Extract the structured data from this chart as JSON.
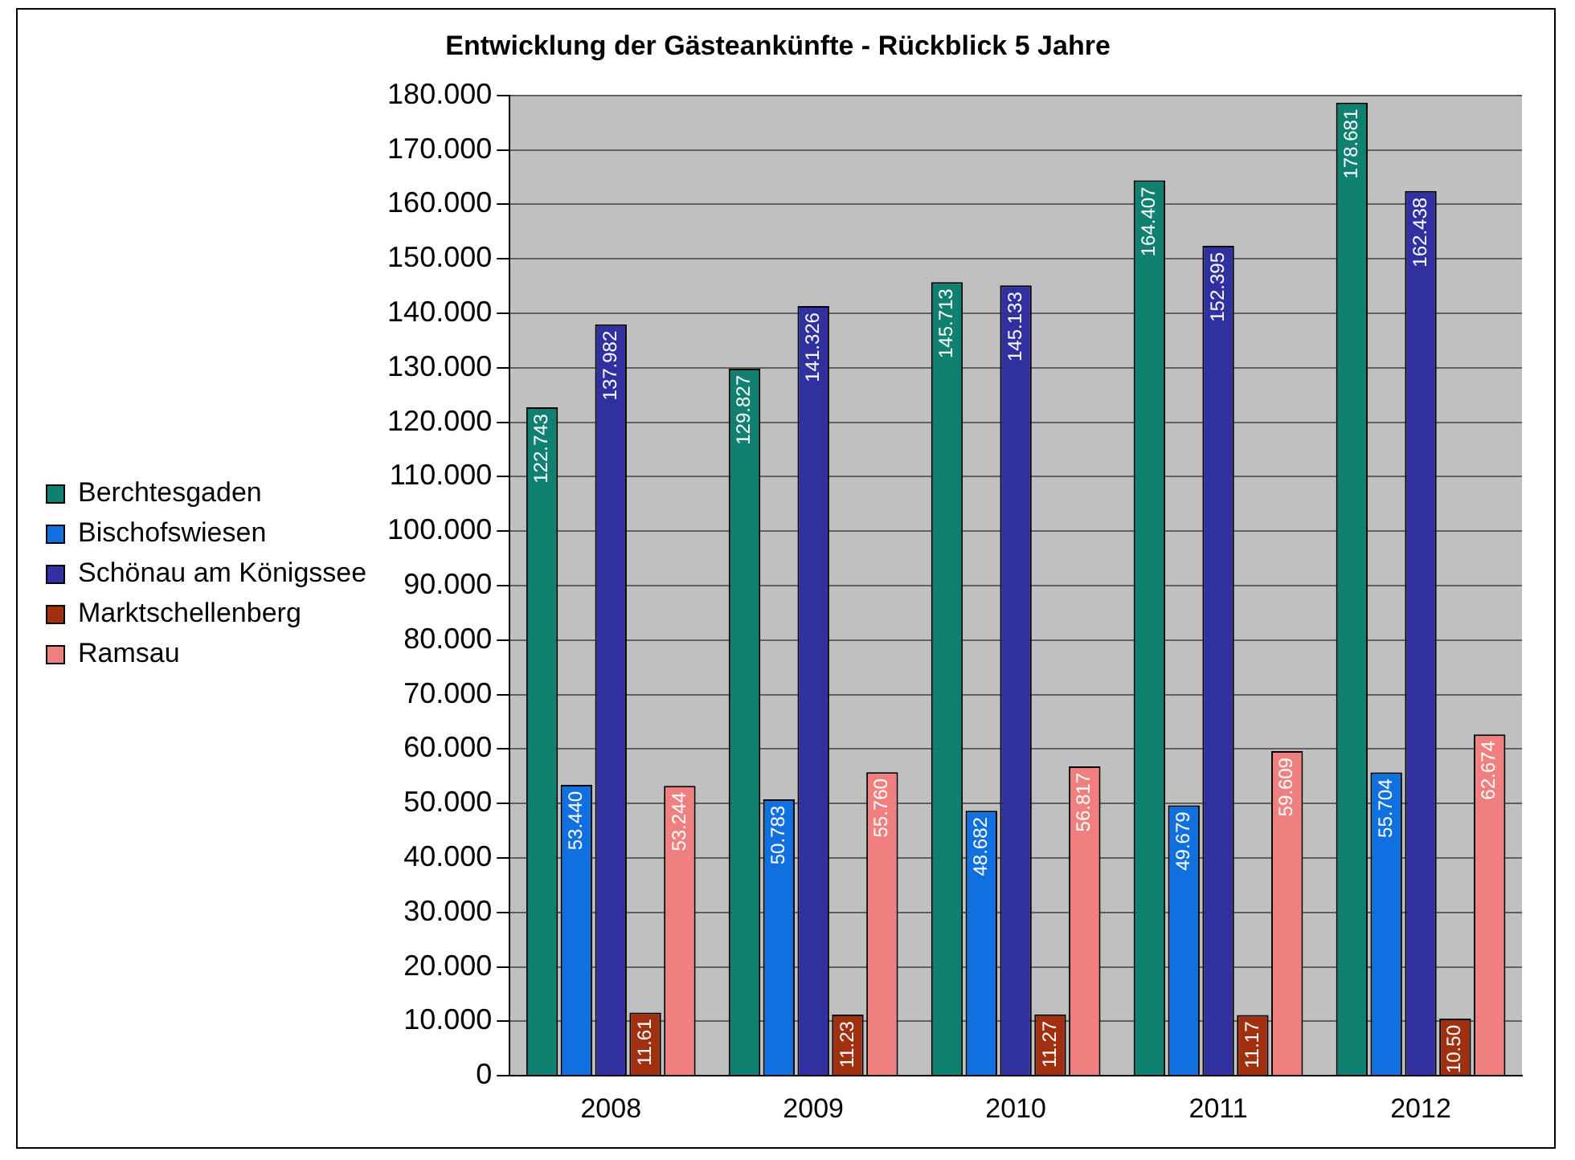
{
  "chart_data": {
    "type": "bar",
    "title": "Entwicklung der Gästeankünfte - Rückblick 5 Jahre",
    "categories": [
      "2008",
      "2009",
      "2010",
      "2011",
      "2012"
    ],
    "series": [
      {
        "name": "Berchtesgaden",
        "color": "#108070",
        "values": [
          122.743,
          129.827,
          145.713,
          164.407,
          178.681
        ],
        "value_labels": [
          "122.743",
          "129.827",
          "145.713",
          "164.407",
          "178.681"
        ]
      },
      {
        "name": "Bischofswiesen",
        "color": "#1070e0",
        "values": [
          53.44,
          50.783,
          48.682,
          49.679,
          55.704
        ],
        "value_labels": [
          "53.440",
          "50.783",
          "48.682",
          "49.679",
          "55.704"
        ]
      },
      {
        "name": "Schönau am Königssee",
        "color": "#3030a0",
        "values": [
          137.982,
          141.326,
          145.133,
          152.395,
          162.438
        ],
        "value_labels": [
          "137.982",
          "141.326",
          "145.133",
          "152.395",
          "162.438"
        ]
      },
      {
        "name": "Marktschellenberg",
        "color": "#a03010",
        "values": [
          11.61,
          11.23,
          11.27,
          11.17,
          10.5
        ],
        "value_labels": [
          "11.61",
          "11.23",
          "11.27",
          "11.17",
          "10.50"
        ]
      },
      {
        "name": "Ramsau",
        "color": "#f08080",
        "values": [
          53.244,
          55.76,
          56.817,
          59.609,
          62.674
        ],
        "value_labels": [
          "53.244",
          "55.760",
          "56.817",
          "59.609",
          "62.674"
        ]
      }
    ],
    "ylim": [
      0,
      180
    ],
    "yticks": [
      0,
      {
        "value": 10,
        "label": "10.000"
      },
      {
        "value": 20,
        "label": "20.000"
      },
      {
        "value": 30,
        "label": "30.000"
      },
      {
        "value": 40,
        "label": "40.000"
      },
      {
        "value": 50,
        "label": "50.000"
      },
      {
        "value": 60,
        "label": "60.000"
      },
      {
        "value": 70,
        "label": "70.000"
      },
      {
        "value": 80,
        "label": "80.000"
      },
      {
        "value": 90,
        "label": "90.000"
      },
      {
        "value": 100,
        "label": "100.000"
      },
      {
        "value": 110,
        "label": "110.000"
      },
      {
        "value": 120,
        "label": "120.000"
      },
      {
        "value": 130,
        "label": "130.000"
      },
      {
        "value": 140,
        "label": "140.000"
      },
      {
        "value": 150,
        "label": "150.000"
      },
      {
        "value": 160,
        "label": "160.000"
      },
      {
        "value": 170,
        "label": "170.000"
      },
      {
        "value": 180,
        "label": "180.000"
      }
    ],
    "grid": "y",
    "legend": "left"
  }
}
